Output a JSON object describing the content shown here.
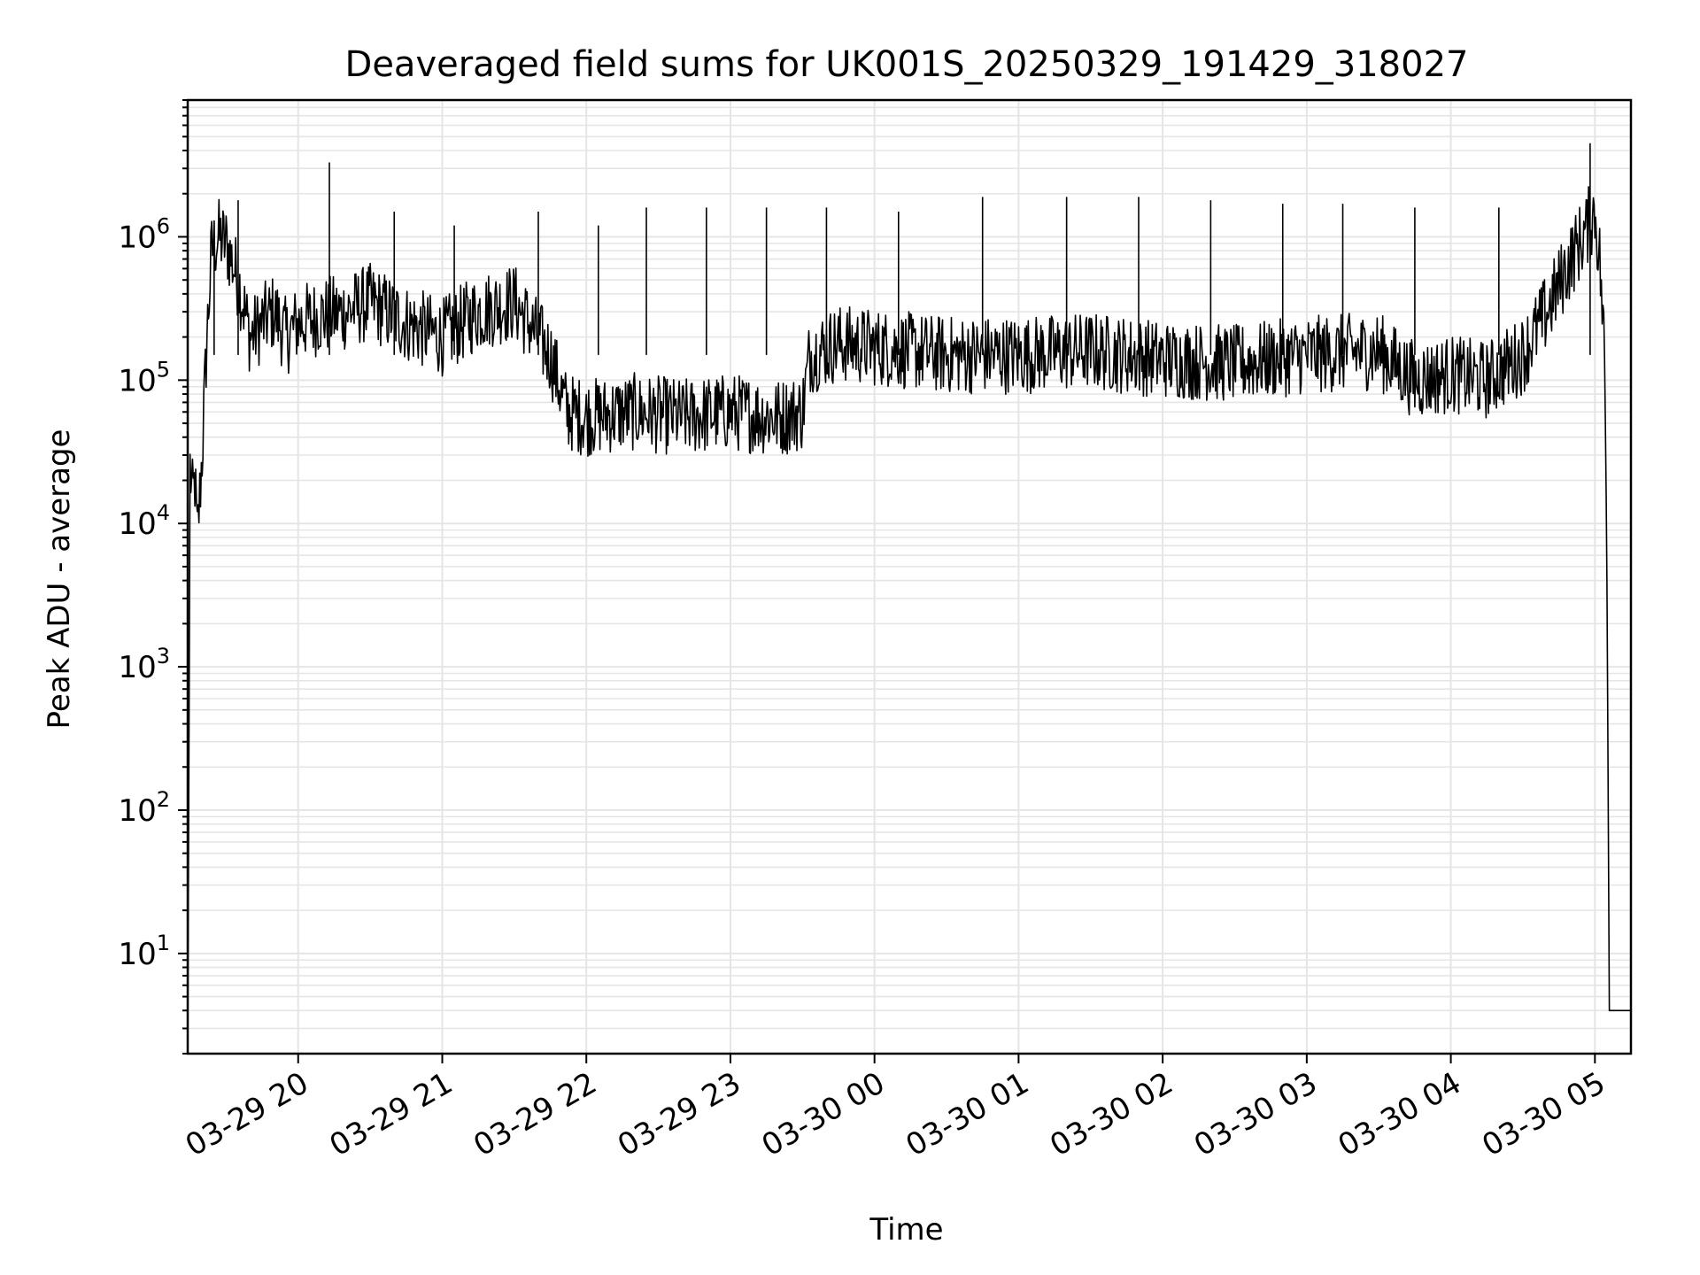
{
  "chart_data": {
    "type": "line",
    "title": "Deaveraged field sums for UK001S_20250329_191429_318027",
    "xlabel": "Time",
    "ylabel": "Peak ADU - average",
    "yscale": "log",
    "grid": true,
    "legend": "none",
    "line_color": "#000000",
    "grid_color": "#e5e5e5",
    "xlim": [
      "2025-03-29 19:14",
      "2025-03-30 05:15"
    ],
    "ylim": [
      2,
      9000000
    ],
    "x_tick_labels": [
      "03-29 20",
      "03-29 21",
      "03-29 22",
      "03-29 23",
      "03-30 00",
      "03-30 01",
      "03-30 02",
      "03-30 03",
      "03-30 04",
      "03-30 05"
    ],
    "y_tick_labels": [
      {
        "base": "10",
        "exp": "1",
        "value": 10
      },
      {
        "base": "10",
        "exp": "2",
        "value": 100
      },
      {
        "base": "10",
        "exp": "3",
        "value": 1000
      },
      {
        "base": "10",
        "exp": "4",
        "value": 10000
      },
      {
        "base": "10",
        "exp": "5",
        "value": 100000
      },
      {
        "base": "10",
        "exp": "6",
        "value": 1000000
      }
    ],
    "series": [
      {
        "x": [
          "2025-03-29 19:14",
          "2025-03-29 19:15",
          "2025-03-29 19:16",
          "2025-03-29 19:17",
          "2025-03-29 19:18",
          "2025-03-29 19:20",
          "2025-03-29 19:22",
          "2025-03-29 19:24",
          "2025-03-29 19:27",
          "2025-03-29 19:30",
          "2025-03-29 19:35",
          "2025-03-29 19:40",
          "2025-03-29 19:45",
          "2025-03-29 19:50",
          "2025-03-29 19:55",
          "2025-03-29 20:00",
          "2025-03-29 20:10",
          "2025-03-29 20:20",
          "2025-03-29 20:30",
          "2025-03-29 20:45",
          "2025-03-29 21:00",
          "2025-03-29 21:15",
          "2025-03-29 21:30",
          "2025-03-29 21:45",
          "2025-03-29 21:52",
          "2025-03-29 22:00",
          "2025-03-29 22:20",
          "2025-03-29 22:40",
          "2025-03-29 23:00",
          "2025-03-29 23:20",
          "2025-03-29 23:30",
          "2025-03-29 23:33",
          "2025-03-29 23:45",
          "2025-03-30 00:00",
          "2025-03-30 00:30",
          "2025-03-30 01:00",
          "2025-03-30 01:30",
          "2025-03-30 02:00",
          "2025-03-30 02:30",
          "2025-03-30 03:00",
          "2025-03-30 03:30",
          "2025-03-30 03:45",
          "2025-03-30 04:00",
          "2025-03-30 04:15",
          "2025-03-30 04:30",
          "2025-03-30 04:40",
          "2025-03-30 04:50",
          "2025-03-30 04:55",
          "2025-03-30 05:00",
          "2025-03-30 05:02",
          "2025-03-30 05:04",
          "2025-03-30 05:05",
          "2025-03-30 05:06",
          "2025-03-30 05:10",
          "2025-03-30 05:15"
        ],
        "y": [
          2,
          25000,
          15000,
          20000,
          8000,
          30000,
          200000,
          800000,
          1000000,
          900000,
          500000,
          200000,
          250000,
          300000,
          200000,
          250000,
          280000,
          300000,
          350000,
          250000,
          200000,
          300000,
          350000,
          150000,
          60000,
          55000,
          60000,
          55000,
          60000,
          55000,
          60000,
          150000,
          180000,
          170000,
          150000,
          150000,
          160000,
          140000,
          130000,
          150000,
          160000,
          100000,
          110000,
          100000,
          150000,
          300000,
          700000,
          1000000,
          1500000,
          700000,
          150000,
          5000,
          4,
          4,
          4
        ]
      }
    ],
    "spikes": {
      "x": [
        "2025-03-29 19:25",
        "2025-03-29 19:35",
        "2025-03-29 20:13",
        "2025-03-29 20:40",
        "2025-03-29 21:05",
        "2025-03-29 21:40",
        "2025-03-29 22:05",
        "2025-03-29 22:25",
        "2025-03-29 22:50",
        "2025-03-29 23:15",
        "2025-03-29 23:40",
        "2025-03-30 00:10",
        "2025-03-30 00:45",
        "2025-03-30 01:20",
        "2025-03-30 01:50",
        "2025-03-30 02:20",
        "2025-03-30 02:50",
        "2025-03-30 03:15",
        "2025-03-30 03:45",
        "2025-03-30 04:20",
        "2025-03-30 04:58"
      ],
      "y": [
        1300000,
        1800000,
        3300000,
        1500000,
        1200000,
        1500000,
        1200000,
        1600000,
        1600000,
        1600000,
        1600000,
        1500000,
        1900000,
        1900000,
        1900000,
        1800000,
        1700000,
        1700000,
        1600000,
        1600000,
        4500000
      ]
    }
  }
}
